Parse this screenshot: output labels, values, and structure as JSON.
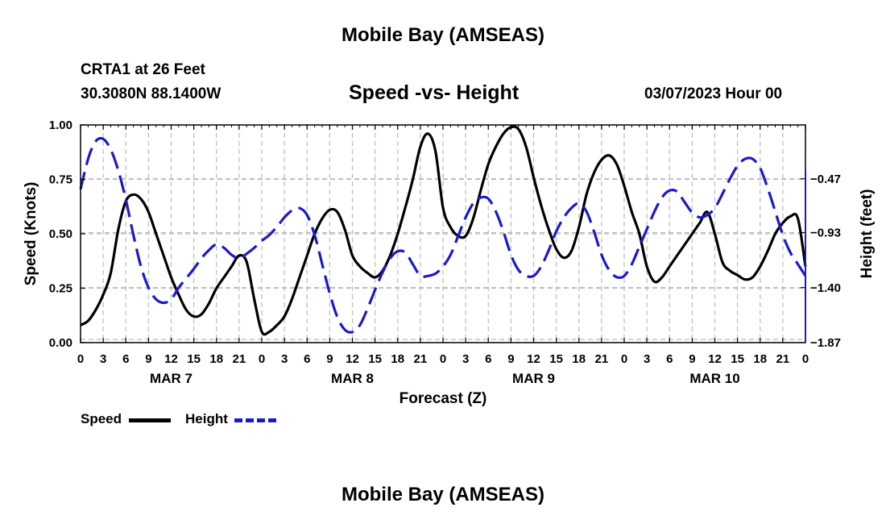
{
  "page": {
    "title_top": "Mobile Bay (AMSEAS)",
    "title_bottom": "Mobile Bay (AMSEAS)",
    "station": "CRTA1 at 26 Feet",
    "coords": "30.3080N  88.1400W",
    "date_hour": "03/07/2023 Hour 00"
  },
  "colors": {
    "speed": "#000000",
    "height": "#1a1acc",
    "grid": "#bbbbbb"
  },
  "chart_data": {
    "type": "line",
    "title": "Speed -vs- Height",
    "xlabel": "Forecast (Z)",
    "ylabel": "Speed (Knots)",
    "y2label": "Height (feet)",
    "x_hours_range": [
      0,
      96
    ],
    "x_tick_labels": [
      "0",
      "3",
      "6",
      "9",
      "12",
      "15",
      "18",
      "21",
      "0",
      "3",
      "6",
      "9",
      "12",
      "15",
      "18",
      "21",
      "0",
      "3",
      "6",
      "9",
      "12",
      "15",
      "18",
      "21",
      "0",
      "3",
      "6",
      "9",
      "12",
      "15",
      "18",
      "21",
      "0"
    ],
    "day_labels": [
      {
        "label": "MAR 7",
        "hour": 12
      },
      {
        "label": "MAR 8",
        "hour": 36
      },
      {
        "label": "MAR 9",
        "hour": 60
      },
      {
        "label": "MAR 10",
        "hour": 84
      }
    ],
    "ylim": [
      0,
      1
    ],
    "y_ticks": [
      0,
      0.25,
      0.5,
      0.75,
      1.0
    ],
    "y_tick_labels": [
      "0.00",
      "0.25",
      "0.50",
      "0.75",
      "1.00"
    ],
    "y2lim": [
      -1.87,
      -0.01
    ],
    "y2_ticks": [
      -1.87,
      -1.4,
      -0.93,
      -0.47
    ],
    "y2_tick_labels": [
      "-1.87",
      "-1.40",
      "-0.93",
      "-0.47"
    ],
    "series": [
      {
        "name": "Speed",
        "axis": "left",
        "style": "solid",
        "points": [
          [
            0,
            0.08
          ],
          [
            1,
            0.1
          ],
          [
            2,
            0.15
          ],
          [
            3,
            0.22
          ],
          [
            4,
            0.32
          ],
          [
            5,
            0.52
          ],
          [
            6,
            0.65
          ],
          [
            7,
            0.68
          ],
          [
            8,
            0.66
          ],
          [
            9,
            0.6
          ],
          [
            10,
            0.5
          ],
          [
            11,
            0.4
          ],
          [
            12,
            0.3
          ],
          [
            13,
            0.22
          ],
          [
            14,
            0.15
          ],
          [
            15,
            0.12
          ],
          [
            16,
            0.13
          ],
          [
            17,
            0.18
          ],
          [
            18,
            0.25
          ],
          [
            19,
            0.3
          ],
          [
            20,
            0.35
          ],
          [
            21,
            0.4
          ],
          [
            22,
            0.37
          ],
          [
            23,
            0.2
          ],
          [
            24,
            0.05
          ],
          [
            25,
            0.05
          ],
          [
            26,
            0.08
          ],
          [
            27,
            0.12
          ],
          [
            28,
            0.2
          ],
          [
            29,
            0.3
          ],
          [
            30,
            0.4
          ],
          [
            31,
            0.5
          ],
          [
            32,
            0.57
          ],
          [
            33,
            0.61
          ],
          [
            34,
            0.6
          ],
          [
            35,
            0.52
          ],
          [
            36,
            0.4
          ],
          [
            37,
            0.35
          ],
          [
            38,
            0.32
          ],
          [
            39,
            0.3
          ],
          [
            40,
            0.33
          ],
          [
            41,
            0.4
          ],
          [
            42,
            0.5
          ],
          [
            43,
            0.62
          ],
          [
            44,
            0.75
          ],
          [
            45,
            0.9
          ],
          [
            46,
            0.96
          ],
          [
            47,
            0.88
          ],
          [
            48,
            0.62
          ],
          [
            49,
            0.53
          ],
          [
            50,
            0.49
          ],
          [
            51,
            0.49
          ],
          [
            52,
            0.57
          ],
          [
            53,
            0.7
          ],
          [
            54,
            0.82
          ],
          [
            55,
            0.9
          ],
          [
            56,
            0.96
          ],
          [
            57,
            0.99
          ],
          [
            58,
            0.98
          ],
          [
            59,
            0.9
          ],
          [
            60,
            0.76
          ],
          [
            61,
            0.63
          ],
          [
            62,
            0.52
          ],
          [
            63,
            0.43
          ],
          [
            64,
            0.39
          ],
          [
            65,
            0.42
          ],
          [
            66,
            0.53
          ],
          [
            67,
            0.68
          ],
          [
            68,
            0.78
          ],
          [
            69,
            0.84
          ],
          [
            70,
            0.86
          ],
          [
            71,
            0.82
          ],
          [
            72,
            0.72
          ],
          [
            73,
            0.6
          ],
          [
            74,
            0.5
          ],
          [
            75,
            0.35
          ],
          [
            76,
            0.28
          ],
          [
            77,
            0.3
          ],
          [
            78,
            0.35
          ],
          [
            79,
            0.4
          ],
          [
            80,
            0.45
          ],
          [
            81,
            0.5
          ],
          [
            82,
            0.55
          ],
          [
            83,
            0.6
          ],
          [
            84,
            0.5
          ],
          [
            85,
            0.37
          ],
          [
            86,
            0.33
          ],
          [
            87,
            0.31
          ],
          [
            88,
            0.29
          ],
          [
            89,
            0.3
          ],
          [
            90,
            0.35
          ],
          [
            91,
            0.42
          ],
          [
            92,
            0.5
          ],
          [
            93,
            0.55
          ],
          [
            94,
            0.58
          ],
          [
            95,
            0.57
          ],
          [
            96,
            0.35
          ]
        ]
      },
      {
        "name": "Height",
        "axis": "right",
        "style": "dashed",
        "points": [
          [
            0,
            -0.56
          ],
          [
            1,
            -0.3
          ],
          [
            2,
            -0.15
          ],
          [
            3,
            -0.13
          ],
          [
            4,
            -0.22
          ],
          [
            5,
            -0.4
          ],
          [
            6,
            -0.65
          ],
          [
            7,
            -0.95
          ],
          [
            8,
            -1.22
          ],
          [
            9,
            -1.4
          ],
          [
            10,
            -1.5
          ],
          [
            11,
            -1.53
          ],
          [
            12,
            -1.5
          ],
          [
            13,
            -1.4
          ],
          [
            14,
            -1.32
          ],
          [
            15,
            -1.24
          ],
          [
            16,
            -1.15
          ],
          [
            17,
            -1.08
          ],
          [
            18,
            -1.03
          ],
          [
            19,
            -1.06
          ],
          [
            20,
            -1.12
          ],
          [
            21,
            -1.15
          ],
          [
            22,
            -1.11
          ],
          [
            23,
            -1.06
          ],
          [
            24,
            -1.0
          ],
          [
            25,
            -0.95
          ],
          [
            26,
            -0.88
          ],
          [
            27,
            -0.8
          ],
          [
            28,
            -0.74
          ],
          [
            29,
            -0.72
          ],
          [
            30,
            -0.78
          ],
          [
            31,
            -0.95
          ],
          [
            32,
            -1.2
          ],
          [
            33,
            -1.45
          ],
          [
            34,
            -1.65
          ],
          [
            35,
            -1.76
          ],
          [
            36,
            -1.78
          ],
          [
            37,
            -1.72
          ],
          [
            38,
            -1.58
          ],
          [
            39,
            -1.42
          ],
          [
            40,
            -1.27
          ],
          [
            41,
            -1.15
          ],
          [
            42,
            -1.09
          ],
          [
            43,
            -1.1
          ],
          [
            44,
            -1.2
          ],
          [
            45,
            -1.3
          ],
          [
            46,
            -1.3
          ],
          [
            47,
            -1.28
          ],
          [
            48,
            -1.22
          ],
          [
            49,
            -1.12
          ],
          [
            50,
            -0.96
          ],
          [
            51,
            -0.8
          ],
          [
            52,
            -0.68
          ],
          [
            53,
            -0.63
          ],
          [
            54,
            -0.64
          ],
          [
            55,
            -0.75
          ],
          [
            56,
            -0.92
          ],
          [
            57,
            -1.12
          ],
          [
            58,
            -1.25
          ],
          [
            59,
            -1.3
          ],
          [
            60,
            -1.3
          ],
          [
            61,
            -1.22
          ],
          [
            62,
            -1.08
          ],
          [
            63,
            -0.92
          ],
          [
            64,
            -0.8
          ],
          [
            65,
            -0.72
          ],
          [
            66,
            -0.68
          ],
          [
            67,
            -0.75
          ],
          [
            68,
            -0.92
          ],
          [
            69,
            -1.12
          ],
          [
            70,
            -1.25
          ],
          [
            71,
            -1.31
          ],
          [
            72,
            -1.3
          ],
          [
            73,
            -1.2
          ],
          [
            74,
            -1.05
          ],
          [
            75,
            -0.9
          ],
          [
            76,
            -0.75
          ],
          [
            77,
            -0.63
          ],
          [
            78,
            -0.57
          ],
          [
            79,
            -0.58
          ],
          [
            80,
            -0.67
          ],
          [
            81,
            -0.76
          ],
          [
            82,
            -0.8
          ],
          [
            83,
            -0.78
          ],
          [
            84,
            -0.72
          ],
          [
            85,
            -0.6
          ],
          [
            86,
            -0.47
          ],
          [
            87,
            -0.36
          ],
          [
            88,
            -0.3
          ],
          [
            89,
            -0.3
          ],
          [
            90,
            -0.38
          ],
          [
            91,
            -0.55
          ],
          [
            92,
            -0.75
          ],
          [
            93,
            -0.95
          ],
          [
            94,
            -1.1
          ],
          [
            95,
            -1.2
          ],
          [
            96,
            -1.3
          ]
        ]
      }
    ],
    "legend": [
      {
        "label": "Speed",
        "style": "solid"
      },
      {
        "label": "Height",
        "style": "dashed"
      }
    ]
  }
}
